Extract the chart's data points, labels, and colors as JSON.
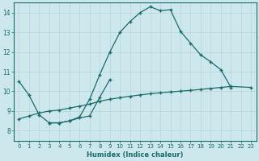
{
  "xlabel": "Humidex (Indice chaleur)",
  "bg_color": "#cde8ec",
  "grid_color": "#b8d4d8",
  "line_color": "#1a6b6b",
  "xlim": [
    -0.5,
    23.5
  ],
  "ylim": [
    7.5,
    14.5
  ],
  "xticks": [
    0,
    1,
    2,
    3,
    4,
    5,
    6,
    7,
    8,
    9,
    10,
    11,
    12,
    13,
    14,
    15,
    16,
    17,
    18,
    19,
    20,
    21,
    22,
    23
  ],
  "yticks": [
    8,
    9,
    10,
    11,
    12,
    13,
    14
  ],
  "line1": {
    "x": [
      0,
      1,
      2,
      3,
      4,
      5,
      6,
      7,
      8,
      9,
      10,
      11,
      12,
      13,
      14,
      15,
      16,
      17,
      18,
      19,
      20,
      21
    ],
    "y": [
      10.5,
      9.8,
      8.8,
      8.4,
      8.4,
      8.5,
      8.7,
      9.6,
      10.85,
      12.0,
      13.0,
      13.55,
      14.0,
      14.3,
      14.1,
      14.15,
      13.05,
      12.45,
      11.85,
      11.5,
      11.1,
      10.2
    ]
  },
  "line2": {
    "x": [
      0,
      1,
      2,
      3,
      4,
      5,
      6,
      7,
      8,
      9,
      10,
      11,
      12,
      13,
      14,
      15,
      16,
      17,
      18,
      19,
      20,
      21,
      23
    ],
    "y": [
      8.6,
      8.75,
      8.9,
      9.0,
      9.05,
      9.15,
      9.25,
      9.35,
      9.5,
      9.6,
      9.68,
      9.75,
      9.82,
      9.88,
      9.93,
      9.97,
      10.01,
      10.05,
      10.1,
      10.15,
      10.2,
      10.25,
      10.2
    ]
  },
  "line3": {
    "x": [
      3,
      4,
      5,
      6,
      7,
      8,
      9
    ],
    "y": [
      8.4,
      8.4,
      8.5,
      8.65,
      8.75,
      9.7,
      10.6
    ]
  }
}
